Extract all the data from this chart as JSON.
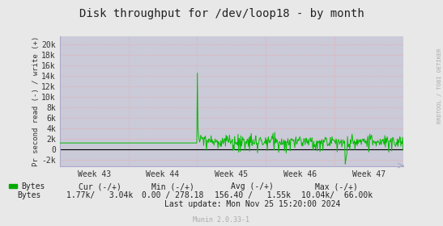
{
  "title": "Disk throughput for /dev/loop18 - by month",
  "ylabel": "Pr second read (-) / write (+)",
  "xlabel_ticks": [
    "Week 43",
    "Week 44",
    "Week 45",
    "Week 46",
    "Week 47"
  ],
  "xtick_positions": [
    0.5,
    1.5,
    2.5,
    3.5,
    4.5
  ],
  "yticks": [
    -2000,
    0,
    2000,
    4000,
    6000,
    8000,
    10000,
    12000,
    14000,
    16000,
    18000,
    20000
  ],
  "ytick_labels": [
    "-2k",
    "0",
    "2k",
    "4k",
    "6k",
    "8k",
    "10k",
    "12k",
    "14k",
    "16k",
    "18k",
    "20k"
  ],
  "ylim": [
    -3200,
    21500
  ],
  "xlim": [
    0,
    5
  ],
  "bg_color": "#e8e8e8",
  "plot_bg_color": "#cacad8",
  "grid_color": "#ff9999",
  "line_color": "#00bb00",
  "zero_line_color": "#000000",
  "right_text": "RRDTOOL / TOBI OETIKER",
  "right_text_color": "#aaaaaa",
  "footer_text": "Munin 2.0.33-1",
  "footer_color": "#aaaaaa",
  "legend_color": "#00aa00",
  "legend_label": "Bytes",
  "stats_cur_header": "Cur (-/+)",
  "stats_min_header": "Min (-/+)",
  "stats_avg_header": "Avg (-/+)",
  "stats_max_header": "Max (-/+)",
  "stats_cur": "1.77k/   3.04k",
  "stats_min": "0.00 / 278.18",
  "stats_avg": "156.40 /   1.55k",
  "stats_max": "10.04k/  66.00k",
  "last_update": "Last update: Mon Nov 25 15:20:00 2024",
  "axis_arrow_color": "#aaaacc",
  "spine_color": "#aaaacc"
}
